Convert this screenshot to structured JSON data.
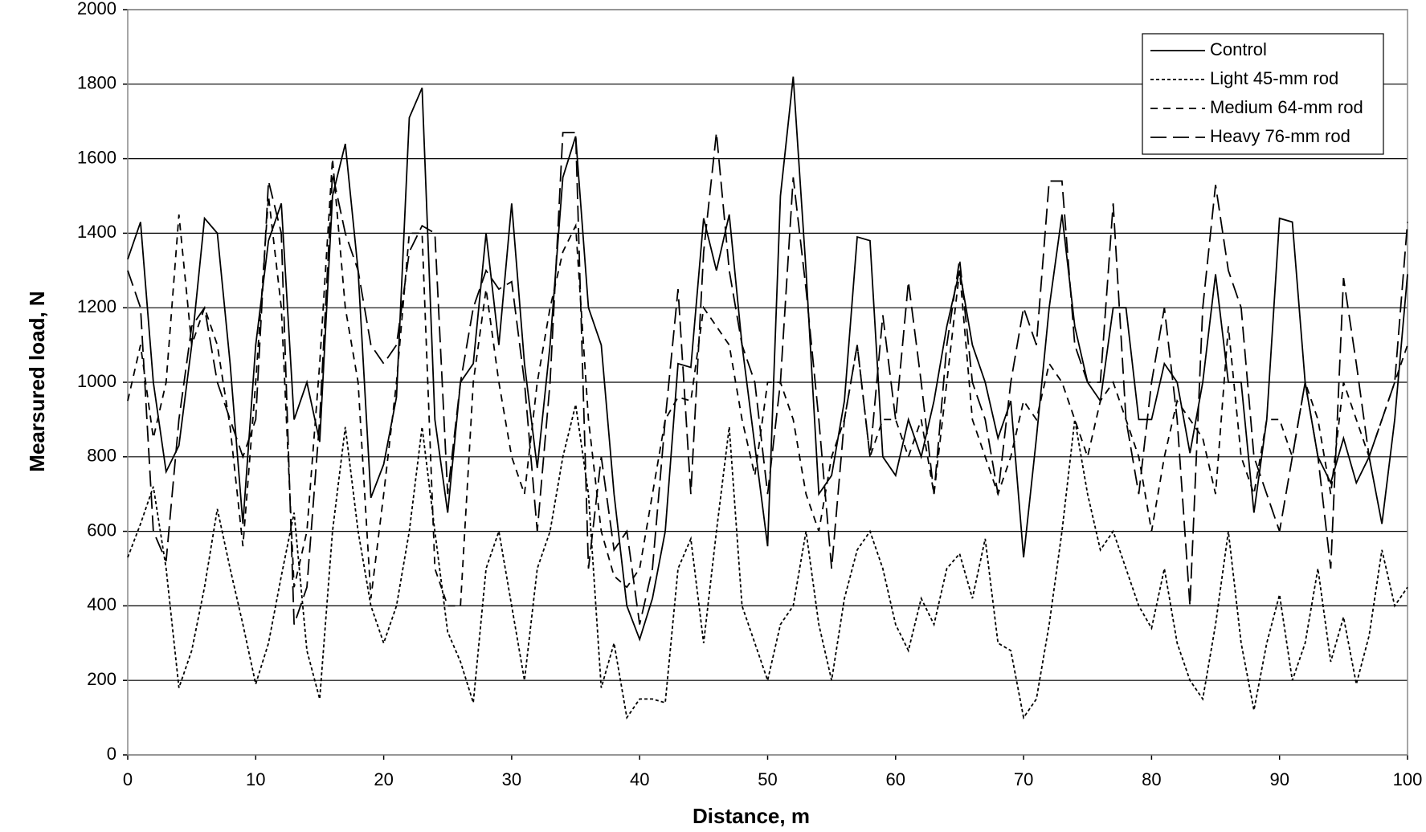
{
  "chart_data": {
    "type": "line",
    "xlabel": "Distance, m",
    "ylabel": "Mearsured load, N",
    "x": [
      0,
      1,
      2,
      3,
      4,
      5,
      6,
      7,
      8,
      9,
      10,
      11,
      12,
      13,
      14,
      15,
      16,
      17,
      18,
      19,
      20,
      21,
      22,
      23,
      24,
      25,
      26,
      27,
      28,
      29,
      30,
      31,
      32,
      33,
      34,
      35,
      36,
      37,
      38,
      39,
      40,
      41,
      42,
      43,
      44,
      45,
      46,
      47,
      48,
      49,
      50,
      51,
      52,
      53,
      54,
      55,
      56,
      57,
      58,
      59,
      60,
      61,
      62,
      63,
      64,
      65,
      66,
      67,
      68,
      69,
      70,
      71,
      72,
      73,
      74,
      75,
      76,
      77,
      78,
      79,
      80,
      81,
      82,
      83,
      84,
      85,
      86,
      87,
      88,
      89,
      90,
      91,
      92,
      93,
      94,
      95,
      96,
      97,
      98,
      99,
      100
    ],
    "xlim": [
      0,
      100
    ],
    "xticks": [
      0,
      10,
      20,
      30,
      40,
      50,
      60,
      70,
      80,
      90,
      100
    ],
    "ylim": [
      0,
      2000
    ],
    "yticks": [
      0,
      200,
      400,
      600,
      800,
      1000,
      1200,
      1400,
      1600,
      1800,
      2000
    ],
    "grid": true,
    "legend": "upper right",
    "series": [
      {
        "name": "Control",
        "color": "#000000",
        "dash": "solid",
        "values": [
          1330,
          1430,
          1000,
          760,
          830,
          1100,
          1440,
          1400,
          1050,
          620,
          1100,
          1380,
          1480,
          900,
          1000,
          840,
          1500,
          1640,
          1300,
          690,
          780,
          960,
          1710,
          1790,
          900,
          650,
          1000,
          1050,
          1400,
          1100,
          1480,
          1050,
          770,
          1100,
          1550,
          1660,
          1200,
          1100,
          700,
          400,
          310,
          420,
          600,
          1050,
          1040,
          1440,
          1300,
          1450,
          1100,
          830,
          560,
          1500,
          1820,
          1300,
          700,
          750,
          950,
          1390,
          1380,
          800,
          750,
          900,
          800,
          950,
          1150,
          1300,
          1100,
          1000,
          850,
          950,
          530,
          850,
          1200,
          1450,
          1150,
          1000,
          950,
          1200,
          1200,
          900,
          900,
          1050,
          1000,
          810,
          1000,
          1290,
          1000,
          1000,
          650,
          900,
          1440,
          1430,
          1000,
          800,
          730,
          850,
          730,
          800,
          620,
          900,
          1290
        ]
      },
      {
        "name": "Light 45-mm rod",
        "color": "#000000",
        "dash": "dotted",
        "values": [
          530,
          620,
          720,
          500,
          180,
          280,
          450,
          660,
          500,
          350,
          190,
          300,
          480,
          650,
          280,
          150,
          600,
          880,
          600,
          400,
          300,
          400,
          600,
          880,
          600,
          330,
          250,
          140,
          500,
          600,
          400,
          200,
          500,
          600,
          800,
          940,
          700,
          180,
          300,
          100,
          150,
          150,
          140,
          500,
          580,
          300,
          600,
          880,
          400,
          300,
          200,
          350,
          400,
          600,
          350,
          200,
          420,
          550,
          600,
          500,
          350,
          280,
          420,
          350,
          500,
          540,
          420,
          580,
          300,
          280,
          100,
          150,
          350,
          600,
          900,
          700,
          550,
          600,
          500,
          400,
          340,
          500,
          300,
          200,
          150,
          350,
          600,
          300,
          120,
          300,
          430,
          200,
          300,
          500,
          250,
          370,
          190,
          320,
          550,
          400,
          450
        ]
      },
      {
        "name": "Medium 64-mm rod",
        "color": "#000000",
        "dash": "dashed",
        "values": [
          950,
          1100,
          850,
          1000,
          1450,
          1100,
          1200,
          1100,
          880,
          560,
          1000,
          1500,
          1200,
          450,
          600,
          1050,
          1600,
          1200,
          1000,
          420,
          700,
          1000,
          1400,
          1400,
          500,
          400,
          400,
          1000,
          1250,
          1000,
          800,
          700,
          1000,
          1200,
          1350,
          1420,
          900,
          600,
          480,
          450,
          500,
          700,
          900,
          960,
          950,
          1200,
          1150,
          1100,
          900,
          750,
          1000,
          1000,
          900,
          700,
          600,
          800,
          900,
          1100,
          800,
          900,
          900,
          800,
          900,
          700,
          1000,
          1300,
          900,
          800,
          700,
          800,
          950,
          900,
          1050,
          1000,
          900,
          800,
          950,
          1000,
          900,
          800,
          600,
          800,
          950,
          900,
          850,
          700,
          1150,
          800,
          700,
          900,
          900,
          800,
          1000,
          900,
          700,
          1000,
          900,
          800,
          900,
          1000,
          1100
        ]
      },
      {
        "name": "Heavy 76-mm rod",
        "color": "#000000",
        "dash": "longdash",
        "values": [
          1300,
          1200,
          600,
          520,
          900,
          1150,
          1200,
          1000,
          900,
          800,
          900,
          1540,
          1400,
          350,
          450,
          900,
          1560,
          1400,
          1300,
          1100,
          1050,
          1100,
          1350,
          1420,
          1400,
          700,
          1000,
          1200,
          1300,
          1250,
          1270,
          1000,
          600,
          1000,
          1670,
          1670,
          500,
          800,
          550,
          600,
          350,
          500,
          900,
          1250,
          700,
          1350,
          1670,
          1300,
          1100,
          1000,
          700,
          1000,
          1550,
          1250,
          900,
          500,
          900,
          1100,
          800,
          1180,
          900,
          1270,
          1000,
          700,
          1100,
          1330,
          1000,
          900,
          700,
          1000,
          1200,
          1100,
          1540,
          1540,
          1100,
          1000,
          1000,
          1480,
          900,
          700,
          1000,
          1200,
          900,
          400,
          1200,
          1530,
          1300,
          1200,
          800,
          700,
          600,
          800,
          1000,
          800,
          500,
          1280,
          1050,
          800,
          900,
          1000,
          1430
        ]
      }
    ]
  }
}
